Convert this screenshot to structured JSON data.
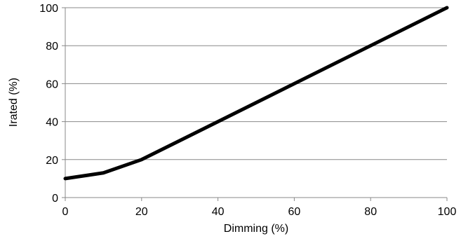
{
  "chart_data": {
    "type": "line",
    "title": "",
    "xlabel": "Dimming (%)",
    "ylabel": "Irated (%)",
    "xlim": [
      0,
      100
    ],
    "ylim": [
      0,
      100
    ],
    "xticks": [
      "0",
      "20",
      "40",
      "60",
      "80",
      "100"
    ],
    "yticks": [
      "0",
      "20",
      "40",
      "60",
      "80",
      "100"
    ],
    "grid": "horizontal",
    "legend": "none",
    "series": [
      {
        "x": [
          0,
          10,
          20,
          100
        ],
        "y": [
          10,
          13,
          20,
          100
        ],
        "color": "#000000"
      }
    ],
    "colors": {
      "grid": "#888888",
      "axis": "#888888",
      "line": "#000000"
    }
  }
}
